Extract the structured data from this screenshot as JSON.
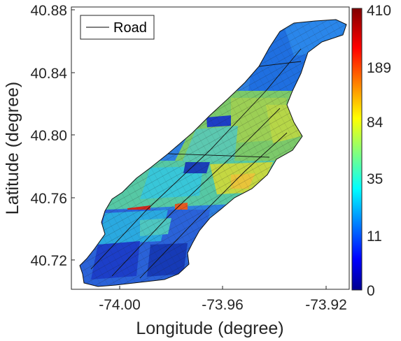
{
  "map": {
    "x_axis_label": "Longitude (degree)",
    "y_axis_label": "Latitude (degree)",
    "x_ticks": [
      "-74.00",
      "-73.96",
      "-73.92"
    ],
    "y_ticks": [
      "40.88",
      "40.84",
      "40.80",
      "40.76",
      "40.72"
    ],
    "legend": {
      "label": "Road",
      "line_color": "#000000"
    },
    "colorbar": {
      "ticks": [
        "410",
        "189",
        "84",
        "35",
        "11",
        "0"
      ],
      "colormap": "jet",
      "scale": "logarithmic"
    },
    "region_fill_colors": {
      "low": "#1e49d8",
      "mid_low": "#2bb8e0",
      "mid": "#57c9a0",
      "mid_high": "#a8d44a",
      "high": "#e8c43a",
      "peak": "#d0281e"
    }
  }
}
